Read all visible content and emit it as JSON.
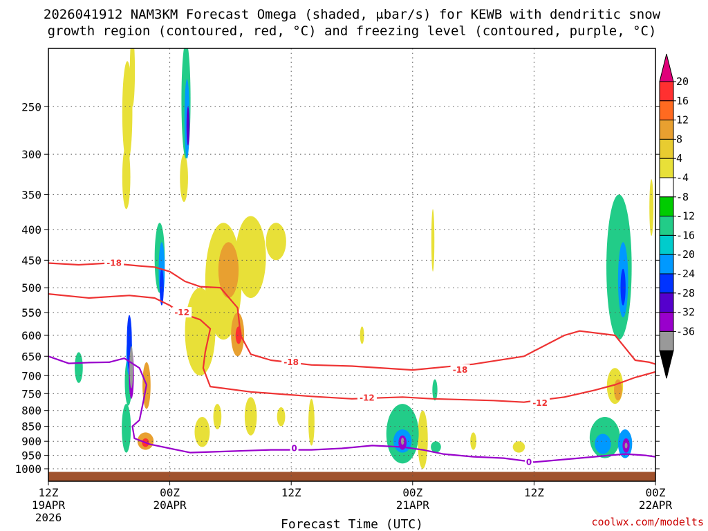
{
  "chart_data": {
    "type": "heatmap",
    "title_line1": "2026041912 NAM3KM Forecast Omega (shaded, μbar/s) for KEWB with dendritic snow",
    "title_line2": "growth region (contoured, red, °C) and freezing level (contoured, purple, °C)",
    "xlabel": "Forecast Time (UTC)",
    "ylabel": "",
    "x_range_hours": [
      0,
      60
    ],
    "y_range_hPa": [
      1000,
      200
    ],
    "x_ticks": [
      {
        "hour": 0,
        "line1": "12Z",
        "line2": "19APR",
        "line3": "2026"
      },
      {
        "hour": 12,
        "line1": "00Z",
        "line2": "20APR",
        "line3": ""
      },
      {
        "hour": 24,
        "line1": "12Z",
        "line2": "",
        "line3": ""
      },
      {
        "hour": 36,
        "line1": "00Z",
        "line2": "21APR",
        "line3": ""
      },
      {
        "hour": 48,
        "line1": "12Z",
        "line2": "",
        "line3": ""
      },
      {
        "hour": 60,
        "line1": "00Z",
        "line2": "22APR",
        "line3": ""
      }
    ],
    "y_ticks": [
      250,
      300,
      350,
      400,
      450,
      500,
      550,
      600,
      650,
      700,
      750,
      800,
      850,
      900,
      950,
      1000
    ],
    "colorbar": {
      "labels": [
        "20",
        "16",
        "12",
        "8",
        "4",
        "-4",
        "-8",
        "-12",
        "-16",
        "-20",
        "-24",
        "-28",
        "-32",
        "-36"
      ],
      "levels": [
        {
          "range": [
            16,
            20
          ],
          "color": "#ff3030"
        },
        {
          "range": [
            12,
            16
          ],
          "color": "#ff6a20"
        },
        {
          "range": [
            8,
            12
          ],
          "color": "#e8a030"
        },
        {
          "range": [
            4,
            8
          ],
          "color": "#e8cc30"
        },
        {
          "range": [
            0,
            4
          ],
          "color": "#e8e038"
        },
        {
          "range": [
            -4,
            4
          ],
          "color": "#ffffff"
        },
        {
          "range": [
            -8,
            -4
          ],
          "color": "#00cc00"
        },
        {
          "range": [
            -12,
            -8
          ],
          "color": "#22cc88"
        },
        {
          "range": [
            -16,
            -12
          ],
          "color": "#00cccc"
        },
        {
          "range": [
            -20,
            -16
          ],
          "color": "#0099ff"
        },
        {
          "range": [
            -24,
            -20
          ],
          "color": "#0033ff"
        },
        {
          "range": [
            -28,
            -24
          ],
          "color": "#5500cc"
        },
        {
          "range": [
            -32,
            -28
          ],
          "color": "#9900cc"
        },
        {
          "range": [
            -36,
            -32
          ],
          "color": "#999999"
        }
      ],
      "top_arrow_color": "#e0007a",
      "bottom_arrow_color": "#000000"
    },
    "omega_cells": [
      {
        "t": 7.7,
        "p": 860,
        "dt": 0.9,
        "dp": 160,
        "v": -8
      },
      {
        "t": 7.9,
        "p": 720,
        "dt": 0.7,
        "dp": 130,
        "v": -10
      },
      {
        "t": 8.0,
        "p": 650,
        "dt": 0.6,
        "dp": 100,
        "v": -16
      },
      {
        "t": 8.0,
        "p": 620,
        "dt": 0.5,
        "dp": 130,
        "v": -20
      },
      {
        "t": 8.2,
        "p": 700,
        "dt": 0.5,
        "dp": 130,
        "v": -28
      },
      {
        "t": 8.2,
        "p": 680,
        "dt": 0.35,
        "dp": 110,
        "v": -36
      },
      {
        "t": 7.8,
        "p": 260,
        "dt": 1.0,
        "dp": 100,
        "v": 4
      },
      {
        "t": 7.7,
        "p": 330,
        "dt": 0.8,
        "dp": 80,
        "v": 4
      },
      {
        "t": 8.3,
        "p": 220,
        "dt": 0.5,
        "dp": 60,
        "v": 4
      },
      {
        "t": 3.0,
        "p": 680,
        "dt": 0.8,
        "dp": 80,
        "v": -8
      },
      {
        "t": 9.7,
        "p": 730,
        "dt": 0.8,
        "dp": 130,
        "v": 8
      },
      {
        "t": 9.6,
        "p": 900,
        "dt": 1.6,
        "dp": 60,
        "v": 8
      },
      {
        "t": 9.6,
        "p": 905,
        "dt": 0.7,
        "dp": 30,
        "v": 16
      },
      {
        "t": 11.0,
        "p": 450,
        "dt": 1.0,
        "dp": 120,
        "v": -8
      },
      {
        "t": 11.2,
        "p": 470,
        "dt": 0.6,
        "dp": 100,
        "v": -16
      },
      {
        "t": 11.2,
        "p": 500,
        "dt": 0.4,
        "dp": 70,
        "v": -20
      },
      {
        "t": 13.6,
        "p": 250,
        "dt": 0.9,
        "dp": 110,
        "v": -8
      },
      {
        "t": 13.7,
        "p": 265,
        "dt": 0.5,
        "dp": 80,
        "v": -16
      },
      {
        "t": 13.8,
        "p": 270,
        "dt": 0.3,
        "dp": 40,
        "v": -24
      },
      {
        "t": 13.4,
        "p": 330,
        "dt": 0.8,
        "dp": 60,
        "v": 4
      },
      {
        "t": 15.0,
        "p": 600,
        "dt": 3.0,
        "dp": 200,
        "v": 4
      },
      {
        "t": 17.3,
        "p": 500,
        "dt": 3.6,
        "dp": 220,
        "v": 4
      },
      {
        "t": 17.8,
        "p": 470,
        "dt": 2.0,
        "dp": 100,
        "v": 8
      },
      {
        "t": 18.7,
        "p": 600,
        "dt": 1.3,
        "dp": 100,
        "v": 8
      },
      {
        "t": 18.8,
        "p": 600,
        "dt": 0.6,
        "dp": 40,
        "v": 16
      },
      {
        "t": 20.0,
        "p": 450,
        "dt": 3.0,
        "dp": 140,
        "v": 4
      },
      {
        "t": 22.5,
        "p": 420,
        "dt": 2.0,
        "dp": 60,
        "v": 4
      },
      {
        "t": 20.0,
        "p": 820,
        "dt": 1.2,
        "dp": 120,
        "v": 4
      },
      {
        "t": 15.2,
        "p": 870,
        "dt": 1.5,
        "dp": 100,
        "v": 4
      },
      {
        "t": 16.7,
        "p": 820,
        "dt": 0.8,
        "dp": 80,
        "v": 4
      },
      {
        "t": 23.0,
        "p": 820,
        "dt": 0.8,
        "dp": 60,
        "v": 4
      },
      {
        "t": 26.0,
        "p": 840,
        "dt": 0.6,
        "dp": 150,
        "v": 4
      },
      {
        "t": 31.0,
        "p": 600,
        "dt": 0.4,
        "dp": 40,
        "v": 4
      },
      {
        "t": 35.0,
        "p": 880,
        "dt": 3.2,
        "dp": 200,
        "v": -8
      },
      {
        "t": 35.0,
        "p": 900,
        "dt": 1.8,
        "dp": 80,
        "v": -16
      },
      {
        "t": 35.0,
        "p": 905,
        "dt": 0.8,
        "dp": 50,
        "v": -28
      },
      {
        "t": 35.0,
        "p": 900,
        "dt": 0.3,
        "dp": 25,
        "v": -36
      },
      {
        "t": 37.0,
        "p": 900,
        "dt": 1.0,
        "dp": 200,
        "v": 4
      },
      {
        "t": 38.2,
        "p": 740,
        "dt": 0.5,
        "dp": 60,
        "v": -8
      },
      {
        "t": 38.0,
        "p": 420,
        "dt": 0.3,
        "dp": 100,
        "v": 4
      },
      {
        "t": 38.3,
        "p": 920,
        "dt": 1.0,
        "dp": 40,
        "v": -8
      },
      {
        "t": 42.0,
        "p": 900,
        "dt": 0.6,
        "dp": 60,
        "v": 4
      },
      {
        "t": 46.5,
        "p": 920,
        "dt": 1.2,
        "dp": 40,
        "v": 4
      },
      {
        "t": 56.4,
        "p": 480,
        "dt": 2.5,
        "dp": 260,
        "v": -8
      },
      {
        "t": 56.8,
        "p": 490,
        "dt": 1.0,
        "dp": 140,
        "v": -16
      },
      {
        "t": 56.8,
        "p": 500,
        "dt": 0.5,
        "dp": 70,
        "v": -20
      },
      {
        "t": 55.0,
        "p": 890,
        "dt": 3.0,
        "dp": 140,
        "v": -8
      },
      {
        "t": 54.8,
        "p": 910,
        "dt": 1.6,
        "dp": 70,
        "v": -16
      },
      {
        "t": 57.0,
        "p": 910,
        "dt": 1.4,
        "dp": 100,
        "v": -16
      },
      {
        "t": 57.1,
        "p": 915,
        "dt": 0.7,
        "dp": 50,
        "v": -28
      },
      {
        "t": 57.1,
        "p": 915,
        "dt": 0.25,
        "dp": 20,
        "v": -36
      },
      {
        "t": 56.0,
        "p": 730,
        "dt": 1.6,
        "dp": 100,
        "v": 4
      },
      {
        "t": 56.3,
        "p": 740,
        "dt": 0.8,
        "dp": 60,
        "v": 8
      },
      {
        "t": 59.6,
        "p": 370,
        "dt": 0.4,
        "dp": 80,
        "v": 4
      }
    ],
    "terrain": {
      "p_top": 1012,
      "color": "#a0522d"
    },
    "dgz_contours": [
      {
        "level": -18,
        "label": "-18",
        "color": "#ee3333",
        "points": [
          [
            0,
            455
          ],
          [
            3,
            458
          ],
          [
            6,
            455
          ],
          [
            9,
            460
          ],
          [
            10.5,
            462
          ],
          [
            12,
            470
          ],
          [
            13.5,
            488
          ],
          [
            15,
            498
          ],
          [
            17,
            500
          ],
          [
            18.7,
            540
          ],
          [
            19,
            600
          ],
          [
            20,
            645
          ],
          [
            22,
            660
          ],
          [
            26,
            672
          ],
          [
            30,
            675
          ],
          [
            36,
            685
          ],
          [
            42,
            670
          ],
          [
            47,
            650
          ],
          [
            51,
            600
          ],
          [
            52.5,
            590
          ],
          [
            56,
            600
          ],
          [
            58,
            660
          ],
          [
            59.4,
            665
          ],
          [
            60,
            670
          ]
        ],
        "labels_at": [
          [
            6.5,
            455
          ],
          [
            24,
            665
          ],
          [
            40.7,
            685
          ]
        ]
      },
      {
        "level": -12,
        "label": "-12",
        "color": "#ee3333",
        "points": [
          [
            0,
            512
          ],
          [
            4,
            520
          ],
          [
            8,
            515
          ],
          [
            10.5,
            520
          ],
          [
            12,
            535
          ],
          [
            13,
            550
          ],
          [
            15,
            565
          ],
          [
            16,
            585
          ],
          [
            15.5,
            640
          ],
          [
            15.3,
            680
          ],
          [
            16,
            730
          ],
          [
            20,
            745
          ],
          [
            26,
            758
          ],
          [
            30,
            765
          ],
          [
            35,
            760
          ],
          [
            38,
            765
          ],
          [
            44,
            770
          ],
          [
            47,
            775
          ],
          [
            51,
            760
          ],
          [
            54,
            740
          ],
          [
            56,
            725
          ],
          [
            58,
            705
          ],
          [
            60,
            690
          ]
        ],
        "labels_at": [
          [
            13.2,
            550
          ],
          [
            31.5,
            762
          ],
          [
            48.6,
            778
          ]
        ]
      }
    ],
    "freezing_contour": {
      "level": 0,
      "label": "0",
      "color": "#9900cc",
      "points": [
        [
          0,
          650
        ],
        [
          2,
          668
        ],
        [
          4,
          666
        ],
        [
          6,
          665
        ],
        [
          7.5,
          655
        ],
        [
          9,
          680
        ],
        [
          9.7,
          725
        ],
        [
          9.4,
          770
        ],
        [
          9,
          830
        ],
        [
          8.3,
          850
        ],
        [
          8.5,
          890
        ],
        [
          10,
          910
        ],
        [
          12,
          925
        ],
        [
          14,
          940
        ],
        [
          18,
          935
        ],
        [
          22,
          930
        ],
        [
          26,
          930
        ],
        [
          29,
          925
        ],
        [
          32,
          915
        ],
        [
          35,
          920
        ],
        [
          37,
          930
        ],
        [
          39,
          945
        ],
        [
          42,
          955
        ],
        [
          45,
          960
        ],
        [
          48,
          975
        ],
        [
          51,
          965
        ],
        [
          54,
          955
        ],
        [
          57,
          945
        ],
        [
          59,
          950
        ],
        [
          60,
          955
        ]
      ],
      "labels_at": [
        [
          24.3,
          925
        ],
        [
          47.5,
          975
        ]
      ]
    },
    "credit": "coolwx.com/modelts"
  }
}
